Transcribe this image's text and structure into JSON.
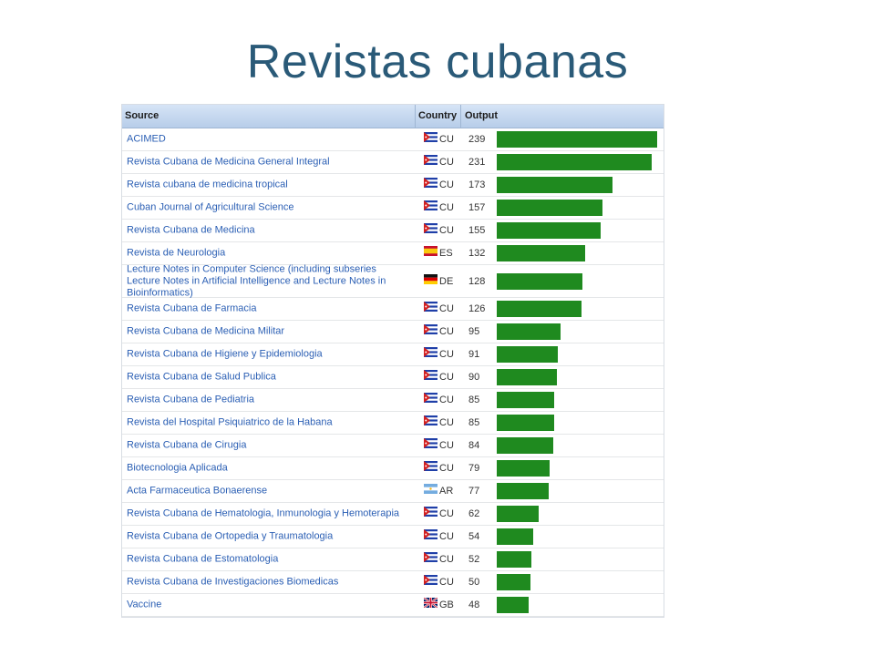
{
  "slide": {
    "title": "Revistas cubanas"
  },
  "table": {
    "headers": {
      "source": "Source",
      "country": "Country",
      "output": "Output"
    },
    "rows": [
      {
        "source": "ACIMED",
        "country": "CU",
        "flag": "cuba-flag",
        "output": "239"
      },
      {
        "source": "Revista Cubana de Medicina General Integral",
        "country": "CU",
        "flag": "cuba-flag",
        "output": "231"
      },
      {
        "source": "Revista cubana de medicina tropical",
        "country": "CU",
        "flag": "cuba-flag",
        "output": "173"
      },
      {
        "source": "Cuban Journal of Agricultural Science",
        "country": "CU",
        "flag": "cuba-flag",
        "output": "157"
      },
      {
        "source": "Revista Cubana de Medicina",
        "country": "CU",
        "flag": "cuba-flag",
        "output": "155"
      },
      {
        "source": "Revista de Neurologia",
        "country": "ES",
        "flag": "spain-flag",
        "output": "132"
      },
      {
        "source": "Lecture Notes in Computer Science (including subseries Lecture Notes in Artificial Intelligence and Lecture Notes in Bioinformatics)",
        "country": "DE",
        "flag": "germany-flag",
        "output": "128"
      },
      {
        "source": "Revista Cubana de Farmacia",
        "country": "CU",
        "flag": "cuba-flag",
        "output": "126"
      },
      {
        "source": "Revista Cubana de Medicina Militar",
        "country": "CU",
        "flag": "cuba-flag",
        "output": "95"
      },
      {
        "source": "Revista Cubana de Higiene y Epidemiologia",
        "country": "CU",
        "flag": "cuba-flag",
        "output": "91"
      },
      {
        "source": "Revista Cubana de Salud Publica",
        "country": "CU",
        "flag": "cuba-flag",
        "output": "90"
      },
      {
        "source": "Revista Cubana de Pediatria",
        "country": "CU",
        "flag": "cuba-flag",
        "output": "85"
      },
      {
        "source": "Revista del Hospital Psiquiatrico de la Habana",
        "country": "CU",
        "flag": "cuba-flag",
        "output": "85"
      },
      {
        "source": "Revista Cubana de Cirugia",
        "country": "CU",
        "flag": "cuba-flag",
        "output": "84"
      },
      {
        "source": "Biotecnologia Aplicada",
        "country": "CU",
        "flag": "cuba-flag",
        "output": "79"
      },
      {
        "source": "Acta Farmaceutica Bonaerense",
        "country": "AR",
        "flag": "argentina-flag",
        "output": "77"
      },
      {
        "source": "Revista Cubana de Hematologia, Inmunologia y Hemoterapia",
        "country": "CU",
        "flag": "cuba-flag",
        "output": "62"
      },
      {
        "source": "Revista Cubana de Ortopedia y Traumatologia",
        "country": "CU",
        "flag": "cuba-flag",
        "output": "54"
      },
      {
        "source": "Revista Cubana de Estomatologia",
        "country": "CU",
        "flag": "cuba-flag",
        "output": "52"
      },
      {
        "source": "Revista Cubana de Investigaciones Biomedicas",
        "country": "CU",
        "flag": "cuba-flag",
        "output": "50"
      },
      {
        "source": "Vaccine",
        "country": "GB",
        "flag": "uk-flag",
        "output": "48"
      }
    ]
  },
  "chart_data": {
    "type": "bar",
    "categories": [
      "ACIMED",
      "Revista Cubana de Medicina General Integral",
      "Revista cubana de medicina tropical",
      "Cuban Journal of Agricultural Science",
      "Revista Cubana de Medicina",
      "Revista de Neurologia",
      "Lecture Notes in Computer Science (including subseries Lecture Notes in Artificial Intelligence and Lecture Notes in Bioinformatics)",
      "Revista Cubana de Farmacia",
      "Revista Cubana de Medicina Militar",
      "Revista Cubana de Higiene y Epidemiologia",
      "Revista Cubana de Salud Publica",
      "Revista Cubana de Pediatria",
      "Revista del Hospital Psiquiatrico de la Habana",
      "Revista Cubana de Cirugia",
      "Biotecnologia Aplicada",
      "Acta Farmaceutica Bonaerense",
      "Revista Cubana de Hematologia, Inmunologia y Hemoterapia",
      "Revista Cubana de Ortopedia y Traumatologia",
      "Revista Cubana de Estomatologia",
      "Revista Cubana de Investigaciones Biomedicas",
      "Vaccine"
    ],
    "values": [
      239,
      231,
      173,
      157,
      155,
      132,
      128,
      126,
      95,
      91,
      90,
      85,
      85,
      84,
      79,
      77,
      62,
      54,
      52,
      50,
      48
    ],
    "orientation": "horizontal",
    "bar_color": "#1f8a1f",
    "title": "Revistas cubanas",
    "xlabel": "",
    "ylabel": "",
    "xlim": [
      0,
      239
    ],
    "grid": false
  }
}
